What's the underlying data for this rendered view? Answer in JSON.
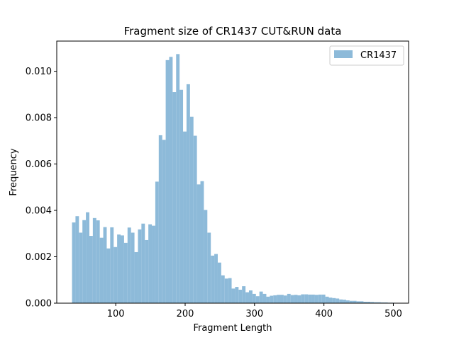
{
  "chart_data": {
    "type": "bar",
    "title": "Fragment size of CR1437 CUT&RUN data",
    "xlabel": "Fragment Length",
    "ylabel": "Frequency",
    "xlim": [
      15,
      522
    ],
    "ylim": [
      0,
      0.0113
    ],
    "xticks": [
      100,
      200,
      300,
      400,
      500
    ],
    "xtick_labels": [
      "100",
      "200",
      "300",
      "400",
      "500"
    ],
    "yticks": [
      0,
      0.002,
      0.004,
      0.006,
      0.008,
      0.01
    ],
    "ytick_labels": [
      "0.000",
      "0.002",
      "0.004",
      "0.006",
      "0.008",
      "0.010"
    ],
    "grid": false,
    "legend_position": "top-right",
    "bar_color": "#8dbad9",
    "series": [
      {
        "name": "CR1437",
        "bin_start": 37,
        "bin_width": 5,
        "values": [
          0.00348,
          0.00375,
          0.00304,
          0.00358,
          0.00392,
          0.0029,
          0.00367,
          0.00357,
          0.00282,
          0.00328,
          0.00236,
          0.00327,
          0.00242,
          0.00296,
          0.00292,
          0.0026,
          0.00326,
          0.00304,
          0.0022,
          0.00318,
          0.00343,
          0.00272,
          0.0034,
          0.00334,
          0.00524,
          0.00724,
          0.00704,
          0.01048,
          0.01062,
          0.0091,
          0.01074,
          0.0092,
          0.0074,
          0.00944,
          0.00804,
          0.00722,
          0.00512,
          0.00526,
          0.00402,
          0.00304,
          0.00205,
          0.00212,
          0.00175,
          0.0012,
          0.00106,
          0.00108,
          0.00063,
          0.0007,
          0.00058,
          0.00073,
          0.00047,
          0.00055,
          0.0004,
          0.0003,
          0.0005,
          0.0004,
          0.00028,
          0.00032,
          0.00034,
          0.00036,
          0.00036,
          0.00033,
          0.0004,
          0.00035,
          0.00036,
          0.00034,
          0.00038,
          0.00038,
          0.00037,
          0.00037,
          0.00036,
          0.00037,
          0.00037,
          0.00028,
          0.00024,
          0.00022,
          0.0002,
          0.00016,
          0.00015,
          0.00012,
          0.0001,
          0.0001,
          8e-05,
          8e-05,
          6e-05,
          6e-05,
          5e-05,
          4e-05,
          4e-05,
          3e-05,
          3e-05,
          2e-05,
          2e-05
        ]
      }
    ]
  }
}
